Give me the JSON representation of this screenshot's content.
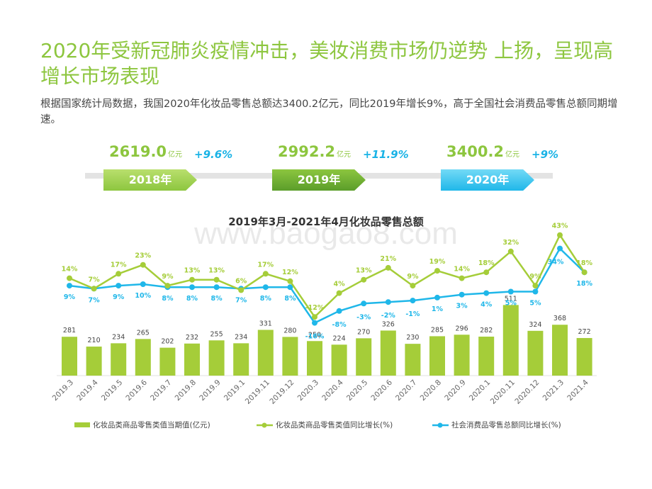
{
  "header": {
    "title": "2020年受新冠肺炎疫情冲击，美妆消费市场仍逆势 上扬，呈现高增长市场表现",
    "subtitle": "根据国家统计局数据，我国2020年化妆品零售总额达3400.2亿元，同比2019年增长9%，高于全国社会消费品零售总额同期增速。"
  },
  "kpis": [
    {
      "value": "2619.0",
      "unit": "亿元",
      "growth": "+9.6%",
      "year": "2018年",
      "color": "#8dc63f"
    },
    {
      "value": "2992.2",
      "unit": "亿元",
      "growth": "+11.9%",
      "year": "2019年",
      "color": "#6aae2f"
    },
    {
      "value": "3400.2",
      "unit": "亿元",
      "growth": "+9%",
      "year": "2020年",
      "color": "#22c0ee"
    }
  ],
  "watermark": "www.baogao8.com",
  "chart_data": {
    "type": "bar",
    "title": "2019年3月-2021年4月化妆品零售总额",
    "categories": [
      "2019.3",
      "2019.4",
      "2019.5",
      "2019.6",
      "2019.7",
      "2019.8",
      "2019.9",
      "2019.1",
      "2019.11",
      "2019.12",
      "2020.3",
      "2020.4",
      "2020.5",
      "2020.6",
      "2020.7",
      "2020.8",
      "2020.9",
      "2020.1",
      "2020.11",
      "2020.12",
      "2021.3",
      "2021.4"
    ],
    "series": [
      {
        "name": "化妆品类商品零售类值当期值(亿元)",
        "type": "bar",
        "color": "#a5cd39",
        "values": [
          281,
          210,
          234,
          265,
          202,
          232,
          255,
          234,
          331,
          280,
          250,
          224,
          270,
          326,
          230,
          285,
          296,
          282,
          511,
          324,
          368,
          272
        ],
        "labels": [
          "281",
          "210",
          "234",
          "265",
          "202",
          "232",
          "255",
          "234",
          "331",
          "280",
          "250",
          "224",
          "270",
          "326",
          "230",
          "285",
          "296",
          "282",
          "511",
          "324",
          "368",
          "272"
        ]
      },
      {
        "name": "化妆品类商品零售类值同比增长(%)",
        "type": "line",
        "color": "#a5cd39",
        "values": [
          14,
          7,
          17,
          23,
          9,
          13,
          13,
          6,
          17,
          12,
          -12,
          4,
          13,
          21,
          9,
          19,
          14,
          18,
          32,
          9,
          43,
          18
        ],
        "labels": [
          "14%",
          "7%",
          "17%",
          "23%",
          "9%",
          "13%",
          "13%",
          "6%",
          "17%",
          "12%",
          "-12%",
          "4%",
          "13%",
          "21%",
          "9%",
          "19%",
          "14%",
          "18%",
          "32%",
          "9%",
          "43%",
          "18%"
        ]
      },
      {
        "name": "社会消费品零售总额同比增长(%)",
        "type": "line",
        "color": "#1fb7e9",
        "values": [
          9,
          7,
          9,
          10,
          8,
          8,
          8,
          7,
          8,
          8,
          -16,
          -8,
          -3,
          -2,
          -1,
          1,
          3,
          4,
          5,
          5,
          34,
          18
        ],
        "labels": [
          "9%",
          "7%",
          "9%",
          "10%",
          "8%",
          "8%",
          "8%",
          "7%",
          "8%",
          "8%",
          "-16%",
          "-8%",
          "-3%",
          "-2%",
          "-1%",
          "1%",
          "3%",
          "4%",
          "5%",
          "5%",
          "34%",
          "18%"
        ]
      }
    ]
  }
}
